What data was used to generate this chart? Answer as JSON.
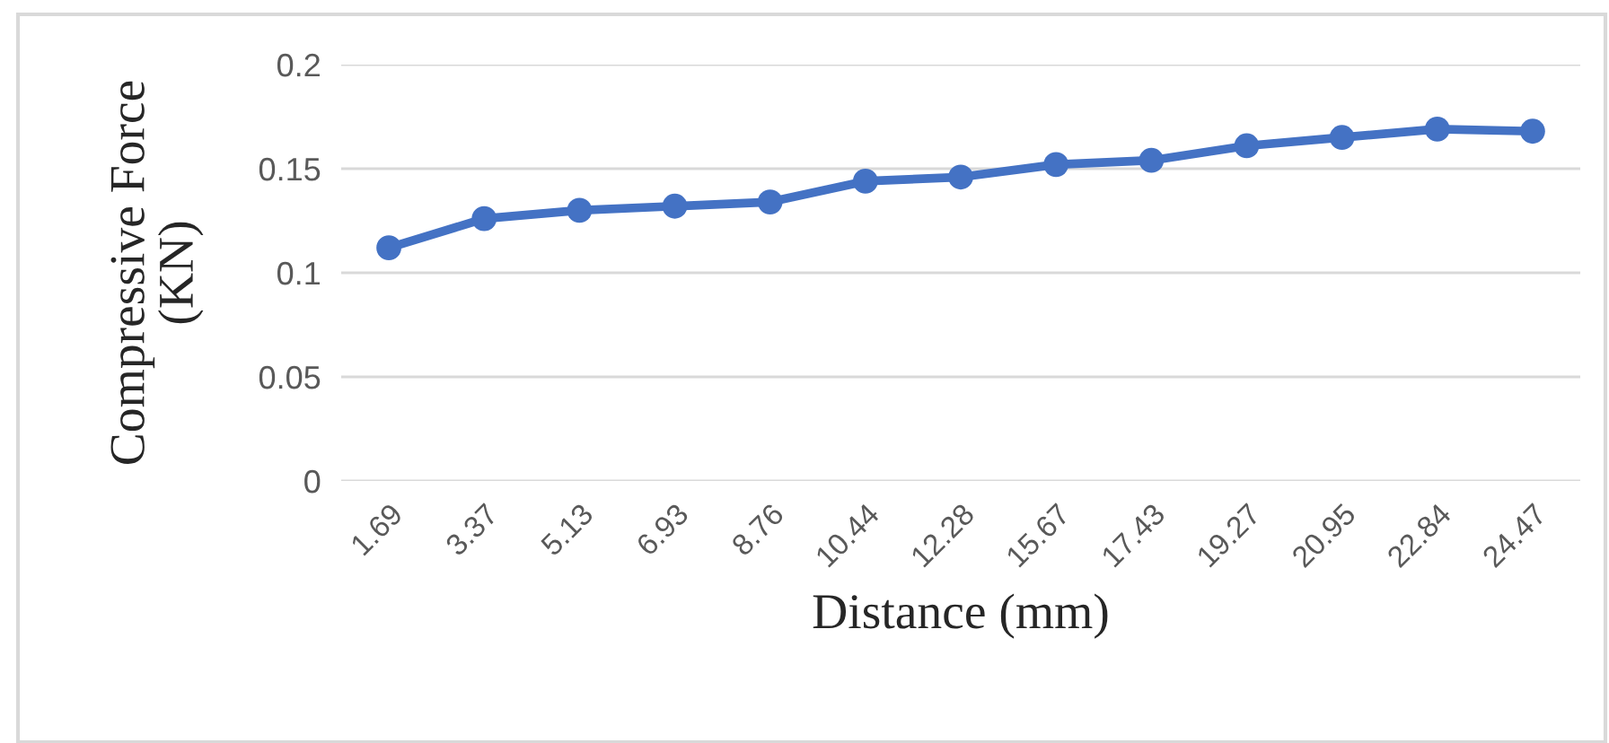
{
  "chart_data": {
    "type": "line",
    "xlabel": "Distance (mm)",
    "ylabel": "Compressive Force\n(KN)",
    "categories": [
      "1.69",
      "3.37",
      "5.13",
      "6.93",
      "8.76",
      "10.44",
      "12.28",
      "15.67",
      "17.43",
      "19.27",
      "20.95",
      "22.84",
      "24.47"
    ],
    "series": [
      {
        "color": "#4472c4",
        "values": [
          0.112,
          0.126,
          0.13,
          0.132,
          0.134,
          0.144,
          0.146,
          0.152,
          0.154,
          0.161,
          0.165,
          0.169,
          0.168
        ]
      }
    ],
    "ylim": [
      0,
      0.2
    ],
    "yticks": [
      0,
      0.05,
      0.1,
      0.15,
      0.2
    ],
    "grid": "y",
    "marker": "circle",
    "line_style": "solid"
  }
}
